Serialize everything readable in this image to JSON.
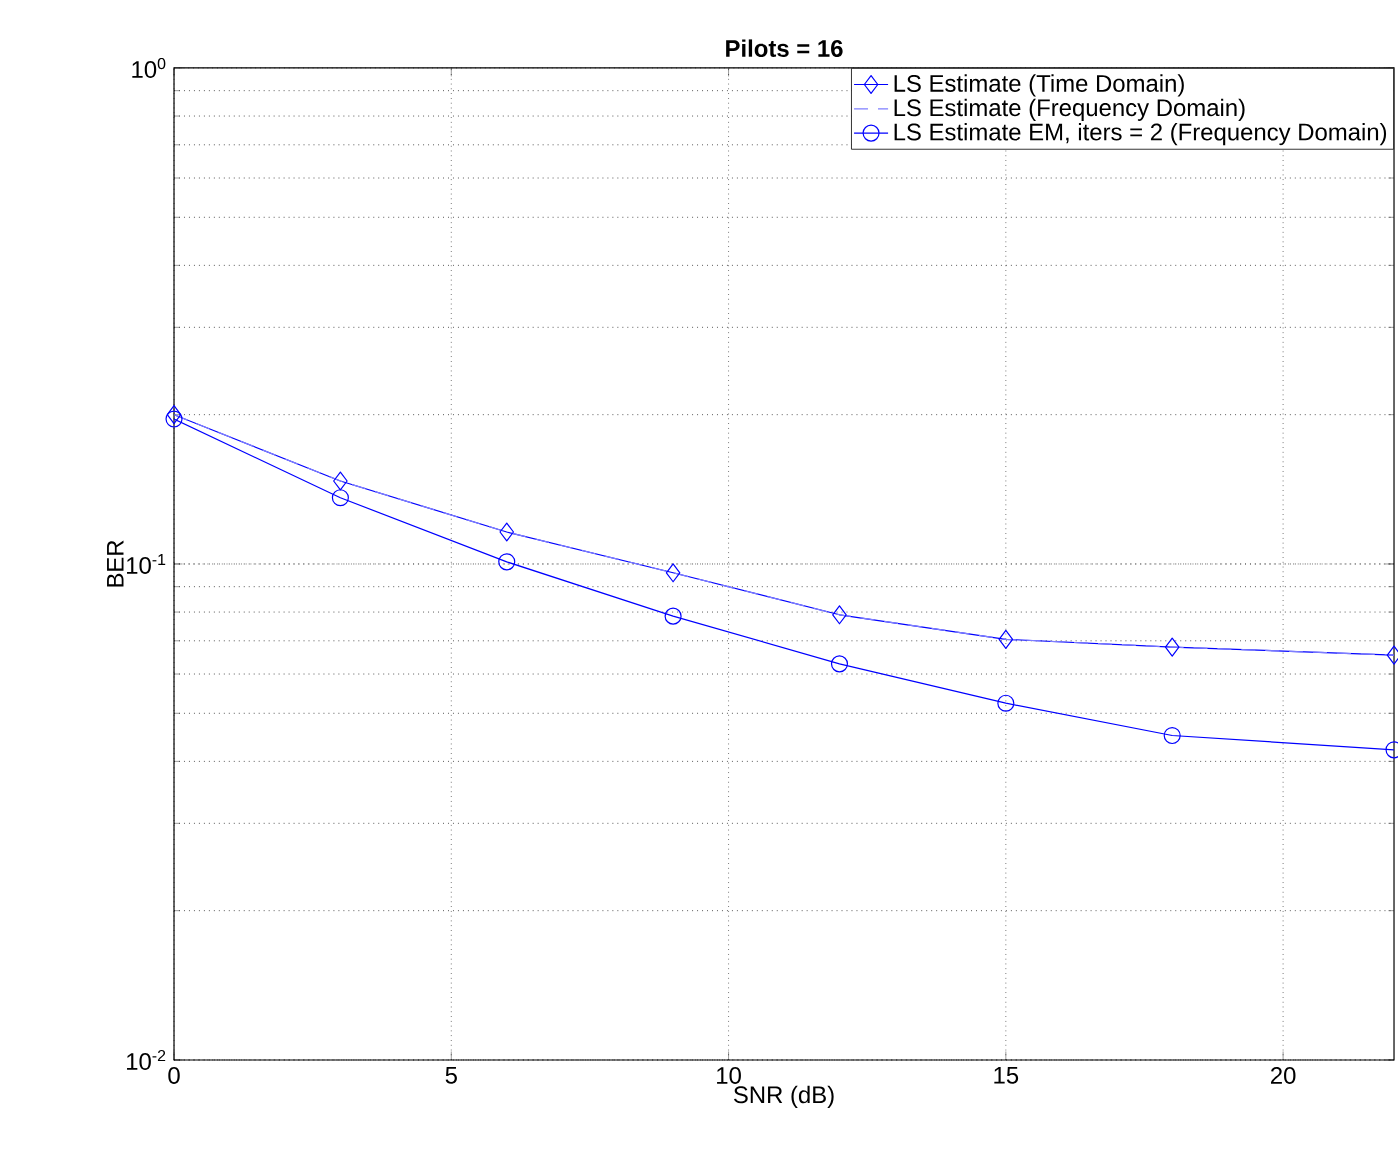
{
  "chart_data": {
    "type": "line",
    "title": "Pilots = 16",
    "xlabel": "SNR (dB)",
    "ylabel": "BER",
    "x": [
      0,
      3,
      6,
      9,
      12,
      15,
      18,
      22
    ],
    "series": [
      {
        "name": "LS Estimate (Time Domain)",
        "color": "#0000ff",
        "marker": "diamond",
        "line_style": "solid",
        "values": [
          0.2,
          0.147,
          0.116,
          0.096,
          0.079,
          0.0705,
          0.068,
          0.0655
        ]
      },
      {
        "name": "LS Estimate (Frequency Domain)",
        "color": "#7f7fff",
        "marker": "none",
        "line_style": "dashed",
        "values": [
          0.2,
          0.147,
          0.116,
          0.096,
          0.079,
          0.0705,
          0.068,
          0.0655
        ]
      },
      {
        "name": "LS Estimate EM, iters = 2 (Frequency Domain)",
        "color": "#0000ff",
        "marker": "circle",
        "line_style": "solid",
        "values": [
          0.196,
          0.136,
          0.101,
          0.0785,
          0.0629,
          0.0524,
          0.0451,
          0.0422
        ]
      }
    ],
    "xlim": [
      0,
      22
    ],
    "xticks": [
      0,
      5,
      10,
      15,
      20
    ],
    "ylim": [
      0.01,
      1
    ],
    "yticks": [
      {
        "value": 0.01,
        "label": "10$^{-2}$"
      },
      {
        "value": 0.1,
        "label": "10$^{-1}$"
      },
      {
        "value": 1,
        "label": "10$^{0}$"
      }
    ],
    "log": "y",
    "grid": true,
    "legend": "top right"
  }
}
